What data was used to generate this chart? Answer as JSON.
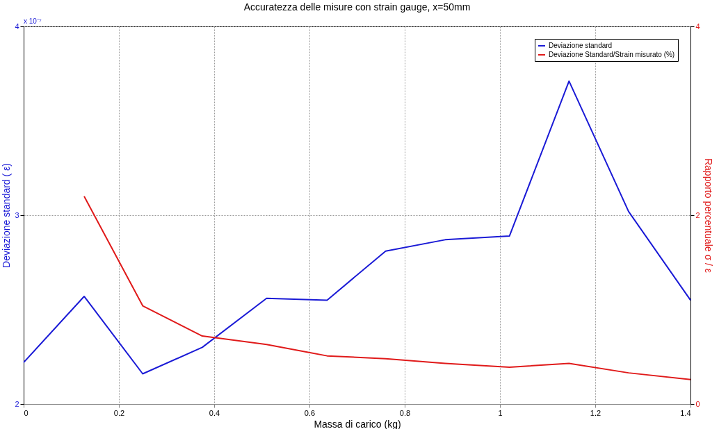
{
  "chart_data": {
    "type": "line",
    "title": "Accuratezza delle misure con strain gauge, x=50mm",
    "xlabel": "Massa di carico (kg)",
    "ylabel": "Deviazione standard ( ε)",
    "y2label": "Rapporto percentuale σ / ε",
    "annotations": [
      "x 10⁻⁷"
    ],
    "x": [
      0,
      0.127,
      0.25,
      0.375,
      0.51,
      0.637,
      0.76,
      0.885,
      1.02,
      1.145,
      1.27,
      1.4
    ],
    "series": [
      {
        "name": "Deviazione standard",
        "color": "#1a1ad6",
        "values": [
          2.22,
          2.57,
          2.16,
          2.3,
          2.56,
          2.55,
          2.81,
          2.87,
          2.89,
          3.71,
          3.02,
          2.55
        ]
      },
      {
        "name": "Deviazione Standard/Strain misurato (%)",
        "color": "#e01a1a",
        "axis": "y2",
        "values": [
          null,
          2.2,
          1.04,
          0.72,
          0.63,
          0.51,
          0.48,
          0.43,
          0.39,
          0.43,
          0.33,
          0.26
        ]
      }
    ],
    "xlim": [
      0,
      1.4
    ],
    "xticks": [
      0,
      0.2,
      0.4,
      0.6,
      0.8,
      1,
      1.2,
      1.4
    ],
    "ylim": [
      2,
      4
    ],
    "yticks": [
      2,
      3,
      4
    ],
    "y2lim": [
      0,
      4
    ],
    "y2ticks": [
      0,
      2,
      4
    ],
    "grid": true,
    "legend": "top right",
    "line_style": "solid"
  }
}
